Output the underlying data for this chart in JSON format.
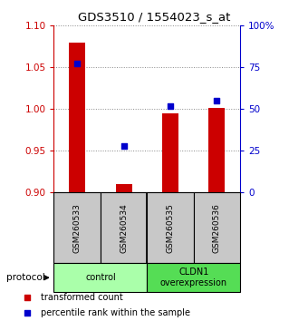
{
  "title": "GDS3510 / 1554023_s_at",
  "samples": [
    "GSM260533",
    "GSM260534",
    "GSM260535",
    "GSM260536"
  ],
  "bar_values": [
    1.08,
    0.91,
    0.995,
    1.001
  ],
  "bar_baseline": 0.9,
  "bar_color": "#cc0000",
  "dot_values": [
    77.5,
    28.0,
    52.0,
    55.0
  ],
  "dot_color": "#0000cc",
  "ylim_left": [
    0.9,
    1.1
  ],
  "ylim_right": [
    0,
    100
  ],
  "yticks_left": [
    0.9,
    0.95,
    1.0,
    1.05,
    1.1
  ],
  "yticks_right": [
    0,
    25,
    50,
    75,
    100
  ],
  "ytick_labels_right": [
    "0",
    "25",
    "50",
    "75",
    "100%"
  ],
  "group_labels": [
    "control",
    "CLDN1\noverexpression"
  ],
  "group_colors": [
    "#aaffaa",
    "#55dd55"
  ],
  "group_ranges": [
    [
      0,
      1
    ],
    [
      2,
      3
    ]
  ],
  "sample_box_color": "#c8c8c8",
  "legend_red_label": "transformed count",
  "legend_blue_label": "percentile rank within the sample",
  "protocol_label": "protocol",
  "background_color": "#ffffff",
  "grid_color": "#888888",
  "bar_width": 0.35
}
